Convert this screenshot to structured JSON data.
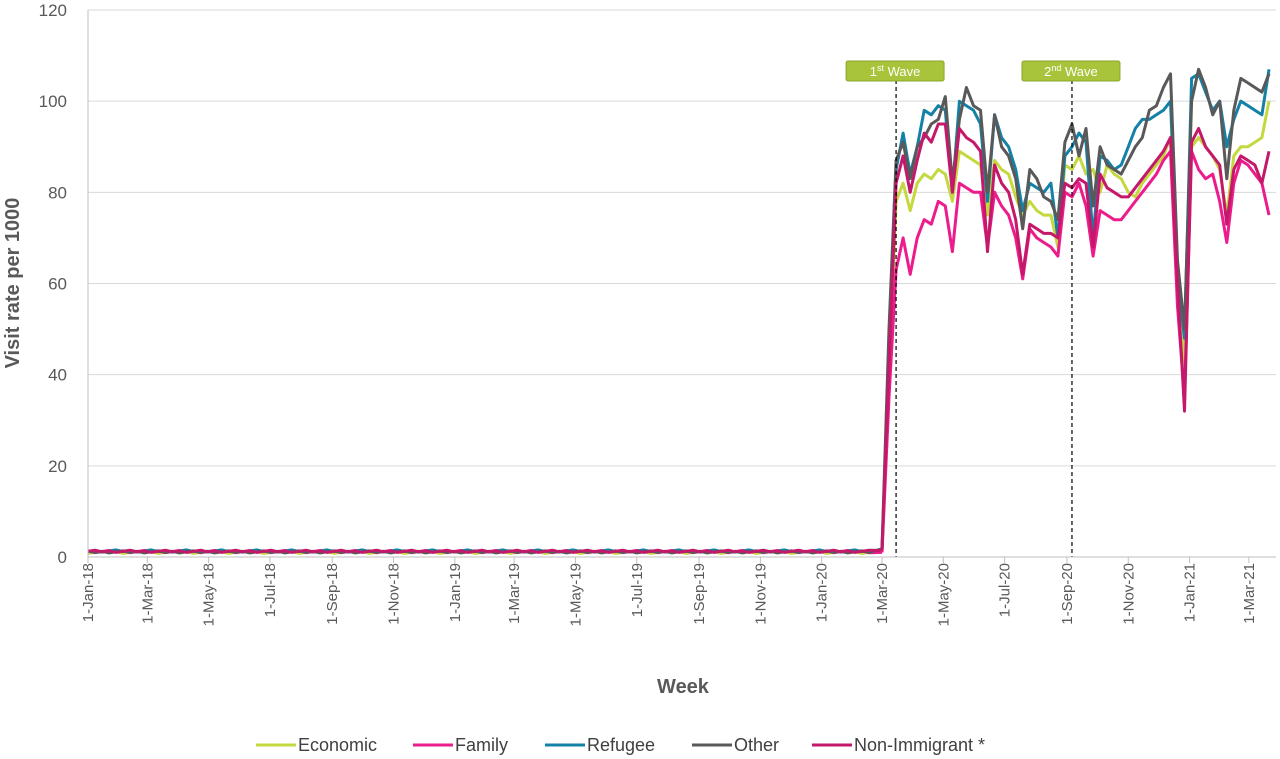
{
  "chart_data": {
    "type": "line",
    "title": "",
    "xlabel": "Week",
    "ylabel": "Visit rate per 1000",
    "ylim": [
      0,
      120
    ],
    "yticks": [
      0,
      20,
      40,
      60,
      80,
      100,
      120
    ],
    "xtick_labels": [
      "1-Jan-18",
      "1-Mar-18",
      "1-May-18",
      "1-Jul-18",
      "1-Sep-18",
      "1-Nov-18",
      "1-Jan-19",
      "1-Mar-19",
      "1-May-19",
      "1-Jul-19",
      "1-Sep-19",
      "1-Nov-19",
      "1-Jan-20",
      "1-Mar-20",
      "1-May-20",
      "1-Jul-20",
      "1-Sep-20",
      "1-Nov-20",
      "1-Jan-21",
      "1-Mar-21"
    ],
    "grid": "horizontal",
    "legend_position": "bottom",
    "annotations": [
      {
        "label_main": "1",
        "label_sup": "st",
        "label_rest": " Wave",
        "date": "2020-03-15"
      },
      {
        "label_main": "2",
        "label_sup": "nd",
        "label_rest": " Wave",
        "date": "2020-09-06"
      }
    ],
    "x": [
      "2020-03-01",
      "2020-03-08",
      "2020-03-15",
      "2020-03-22",
      "2020-03-29",
      "2020-04-05",
      "2020-04-12",
      "2020-04-19",
      "2020-04-26",
      "2020-05-03",
      "2020-05-10",
      "2020-05-17",
      "2020-05-24",
      "2020-05-31",
      "2020-06-07",
      "2020-06-14",
      "2020-06-21",
      "2020-06-28",
      "2020-07-05",
      "2020-07-12",
      "2020-07-19",
      "2020-07-26",
      "2020-08-02",
      "2020-08-09",
      "2020-08-16",
      "2020-08-23",
      "2020-08-30",
      "2020-09-06",
      "2020-09-13",
      "2020-09-20",
      "2020-09-27",
      "2020-10-04",
      "2020-10-11",
      "2020-10-18",
      "2020-10-25",
      "2020-11-01",
      "2020-11-08",
      "2020-11-15",
      "2020-11-22",
      "2020-11-29",
      "2020-12-06",
      "2020-12-13",
      "2020-12-20",
      "2020-12-27",
      "2021-01-03",
      "2021-01-10",
      "2021-01-17",
      "2021-01-24",
      "2021-01-31",
      "2021-02-07",
      "2021-02-14",
      "2021-02-21",
      "2021-02-28",
      "2021-03-07",
      "2021-03-14",
      "2021-03-21"
    ],
    "pre_period": {
      "start": "2018-01-01",
      "end": "2020-02-23",
      "approx_value": 0.8
    },
    "series": [
      {
        "name": "Economic",
        "color": "#C5D83F",
        "values": [
          1.2,
          40,
          78,
          82,
          76,
          82,
          84,
          83,
          85,
          84,
          78,
          89,
          88,
          87,
          86,
          75,
          87,
          85,
          84,
          79,
          75,
          78,
          76,
          75,
          75,
          68,
          86,
          85,
          88,
          84,
          85,
          80,
          86,
          84,
          83,
          80,
          79,
          82,
          84,
          86,
          88,
          92,
          60,
          42,
          90,
          92,
          90,
          88,
          85,
          75,
          88,
          90,
          90,
          91,
          92,
          100
        ]
      },
      {
        "name": "Family",
        "color": "#EC1C8C",
        "values": [
          1.0,
          35,
          63,
          70,
          62,
          70,
          74,
          73,
          78,
          77,
          67,
          82,
          81,
          80,
          80,
          68,
          80,
          77,
          75,
          70,
          61,
          72,
          70,
          69,
          68,
          66,
          80,
          79,
          82,
          77,
          66,
          76,
          75,
          74,
          74,
          76,
          78,
          80,
          82,
          84,
          87,
          89,
          55,
          35,
          89,
          85,
          83,
          84,
          78,
          69,
          82,
          87,
          86,
          84,
          82,
          75
        ]
      },
      {
        "name": "Refugee",
        "color": "#1481A6",
        "values": [
          1.5,
          45,
          85,
          93,
          84,
          90,
          98,
          97,
          99,
          98,
          80,
          100,
          99,
          98,
          95,
          78,
          97,
          92,
          90,
          85,
          76,
          82,
          81,
          80,
          82,
          70,
          88,
          90,
          93,
          91,
          70,
          88,
          87,
          85,
          86,
          90,
          94,
          96,
          96,
          97,
          98,
          100,
          62,
          48,
          105,
          106,
          102,
          98,
          100,
          90,
          96,
          100,
          99,
          98,
          97,
          107
        ]
      },
      {
        "name": "Other",
        "color": "#595959",
        "values": [
          1.8,
          50,
          87,
          91,
          83,
          90,
          92,
          95,
          96,
          101,
          82,
          96,
          103,
          99,
          98,
          80,
          97,
          90,
          88,
          83,
          72,
          85,
          83,
          79,
          78,
          74,
          91,
          95,
          88,
          94,
          77,
          90,
          86,
          85,
          84,
          87,
          90,
          92,
          98,
          99,
          103,
          106,
          65,
          50,
          100,
          107,
          103,
          97,
          100,
          83,
          98,
          105,
          104,
          103,
          102,
          106
        ]
      },
      {
        "name": "Non-Immigrant *",
        "color": "#C4186A",
        "values": [
          1.4,
          42,
          82,
          88,
          80,
          87,
          93,
          91,
          95,
          95,
          80,
          94,
          92,
          91,
          89,
          67,
          86,
          82,
          80,
          74,
          62,
          73,
          72,
          71,
          71,
          70,
          82,
          81,
          83,
          82,
          68,
          84,
          81,
          80,
          79,
          79,
          81,
          83,
          85,
          87,
          89,
          92,
          60,
          32,
          91,
          94,
          90,
          88,
          86,
          73,
          85,
          88,
          87,
          86,
          82,
          89
        ]
      }
    ]
  }
}
